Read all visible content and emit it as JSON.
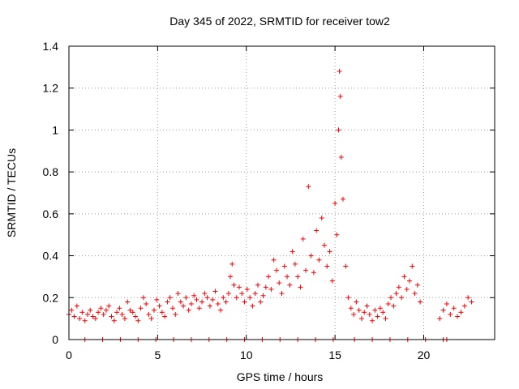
{
  "chart_data": {
    "type": "scatter",
    "title": "Day 345 of 2022, SRMTID for receiver tow2",
    "xlabel": "GPS time / hours",
    "ylabel": "SRMTID / TECUs",
    "xlim": [
      0,
      24
    ],
    "ylim": [
      0,
      1.4
    ],
    "xticks": [
      0,
      5,
      10,
      15,
      20
    ],
    "yticks": [
      0,
      0.2,
      0.4,
      0.6,
      0.8,
      1,
      1.2,
      1.4
    ],
    "ytick_labels": [
      "0",
      "0.2",
      "0.4",
      "0.6",
      "0.8",
      "1",
      "1.2",
      "1.4"
    ],
    "grid": true,
    "marker": "+",
    "color": "#ff0000",
    "series": [
      {
        "name": "SRMTID",
        "x": [
          0.0,
          0.15,
          0.3,
          0.45,
          0.6,
          0.75,
          0.9,
          1.05,
          1.2,
          1.35,
          1.5,
          1.65,
          1.8,
          1.95,
          2.1,
          2.25,
          2.4,
          2.55,
          2.7,
          2.85,
          3.0,
          3.15,
          3.3,
          3.45,
          3.6,
          3.75,
          3.9,
          4.05,
          4.2,
          4.35,
          4.5,
          4.65,
          4.8,
          4.95,
          5.1,
          5.25,
          5.4,
          5.55,
          5.7,
          5.85,
          6.0,
          6.15,
          6.3,
          6.45,
          6.6,
          6.75,
          6.9,
          7.05,
          7.2,
          7.35,
          7.5,
          7.65,
          7.8,
          7.95,
          8.1,
          8.25,
          8.4,
          8.55,
          8.7,
          8.85,
          9.0,
          9.1,
          9.2,
          9.3,
          9.45,
          9.6,
          9.75,
          9.9,
          10.05,
          10.2,
          10.35,
          10.5,
          10.65,
          10.8,
          10.95,
          11.1,
          11.25,
          11.4,
          11.55,
          11.7,
          11.85,
          12.0,
          12.15,
          12.3,
          12.45,
          12.6,
          12.75,
          12.9,
          13.05,
          13.2,
          13.35,
          13.5,
          13.65,
          13.8,
          13.95,
          14.1,
          14.25,
          14.4,
          14.55,
          14.7,
          14.85,
          15.0,
          15.1,
          15.2,
          15.25,
          15.3,
          15.35,
          15.45,
          15.6,
          15.75,
          15.9,
          16.05,
          16.2,
          16.35,
          16.5,
          16.65,
          16.8,
          16.95,
          17.1,
          17.25,
          17.4,
          17.55,
          17.7,
          17.85,
          18.0,
          18.15,
          18.3,
          18.45,
          18.6,
          18.75,
          18.9,
          19.05,
          19.2,
          19.35,
          19.5,
          19.65,
          19.8,
          20.9,
          21.1,
          21.3,
          21.5,
          21.7,
          21.9,
          22.1,
          22.3,
          22.5,
          22.7,
          0.9,
          1.9,
          2.9,
          3.9,
          4.9,
          5.9,
          6.9,
          7.9,
          8.9,
          9.9,
          10.9,
          11.9,
          12.9,
          13.9,
          14.9,
          16.1,
          17.1,
          18.1,
          19.1,
          20.1,
          21.1,
          21.3
        ],
        "y": [
          0.12,
          0.14,
          0.11,
          0.16,
          0.1,
          0.13,
          0.09,
          0.12,
          0.14,
          0.11,
          0.1,
          0.13,
          0.15,
          0.12,
          0.14,
          0.16,
          0.11,
          0.09,
          0.13,
          0.15,
          0.12,
          0.1,
          0.18,
          0.14,
          0.13,
          0.11,
          0.09,
          0.15,
          0.2,
          0.17,
          0.12,
          0.1,
          0.14,
          0.19,
          0.16,
          0.13,
          0.11,
          0.18,
          0.2,
          0.15,
          0.12,
          0.22,
          0.18,
          0.16,
          0.2,
          0.14,
          0.17,
          0.21,
          0.19,
          0.15,
          0.18,
          0.22,
          0.2,
          0.16,
          0.19,
          0.23,
          0.17,
          0.14,
          0.2,
          0.18,
          0.22,
          0.3,
          0.36,
          0.26,
          0.2,
          0.25,
          0.22,
          0.18,
          0.24,
          0.2,
          0.16,
          0.22,
          0.26,
          0.18,
          0.21,
          0.25,
          0.3,
          0.24,
          0.38,
          0.33,
          0.27,
          0.22,
          0.35,
          0.3,
          0.26,
          0.42,
          0.36,
          0.3,
          0.25,
          0.48,
          0.33,
          0.73,
          0.4,
          0.32,
          0.52,
          0.38,
          0.58,
          0.45,
          0.35,
          0.42,
          0.28,
          0.65,
          0.5,
          1.0,
          1.28,
          1.16,
          0.87,
          0.67,
          0.35,
          0.2,
          0.15,
          0.12,
          0.18,
          0.14,
          0.1,
          0.13,
          0.16,
          0.12,
          0.09,
          0.14,
          0.11,
          0.15,
          0.13,
          0.1,
          0.17,
          0.2,
          0.16,
          0.22,
          0.25,
          0.2,
          0.3,
          0.24,
          0.28,
          0.35,
          0.22,
          0.26,
          0.18,
          0.1,
          0.14,
          0.17,
          0.12,
          0.15,
          0.11,
          0.13,
          0.16,
          0.2,
          0.18,
          0.0,
          0.0,
          0.0,
          0.0,
          0.0,
          0.0,
          0.0,
          0.0,
          0.0,
          0.0,
          0.0,
          0.0,
          0.0,
          0.0,
          0.0,
          0.0,
          0.0,
          0.0,
          0.0,
          0.0,
          0.0,
          0.0
        ]
      }
    ]
  }
}
